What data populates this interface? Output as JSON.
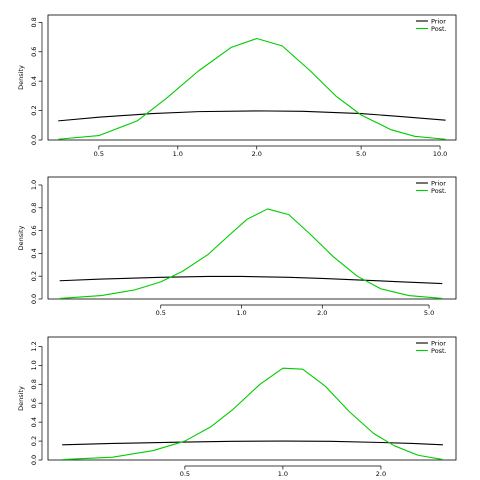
{
  "chart_data": [
    {
      "type": "line",
      "ylabel": "Density",
      "x_scale": "log",
      "xlim": [
        0.32,
        11.5
      ],
      "ylim": [
        0,
        0.85
      ],
      "xticks": [
        0.5,
        1.0,
        2.0,
        5.0,
        10.0
      ],
      "xtick_labels": [
        "0.5",
        "1.0",
        "2.0",
        "5.0",
        "10.0"
      ],
      "yticks": [
        0.0,
        0.2,
        0.4,
        0.6,
        0.8
      ],
      "ytick_labels": [
        "0.0",
        "0.2",
        "0.4",
        "0.6",
        "0.8"
      ],
      "legend": {
        "position": "top-right",
        "entries": [
          {
            "label": "Prior",
            "color": "#000000"
          },
          {
            "label": "Post.",
            "color": "#00cc00"
          }
        ]
      },
      "series": [
        {
          "name": "Prior",
          "color": "#000000",
          "x": [
            0.35,
            0.5,
            0.8,
            1.2,
            2.0,
            3.0,
            5.0,
            7.0,
            10.5
          ],
          "y": [
            0.13,
            0.155,
            0.18,
            0.193,
            0.198,
            0.195,
            0.18,
            0.16,
            0.135
          ]
        },
        {
          "name": "Post.",
          "color": "#00cc00",
          "x": [
            0.35,
            0.5,
            0.7,
            0.9,
            1.2,
            1.6,
            2.0,
            2.5,
            3.2,
            4.0,
            5.0,
            6.5,
            8.0,
            10.5
          ],
          "y": [
            0.005,
            0.03,
            0.13,
            0.28,
            0.47,
            0.63,
            0.69,
            0.64,
            0.47,
            0.3,
            0.17,
            0.07,
            0.025,
            0.005
          ]
        }
      ]
    },
    {
      "type": "line",
      "ylabel": "Density",
      "x_scale": "log",
      "xlim": [
        0.19,
        6.3
      ],
      "ylim": [
        0,
        1.07
      ],
      "xticks": [
        0.5,
        1.0,
        2.0,
        5.0
      ],
      "xtick_labels": [
        "0.5",
        "1.0",
        "2.0",
        "5.0"
      ],
      "yticks": [
        0.0,
        0.2,
        0.4,
        0.6,
        0.8,
        1.0
      ],
      "ytick_labels": [
        "0.0",
        "0.2",
        "0.4",
        "0.6",
        "0.8",
        "1.0"
      ],
      "legend": {
        "position": "top-right",
        "entries": [
          {
            "label": "Prior",
            "color": "#000000"
          },
          {
            "label": "Post.",
            "color": "#00cc00"
          }
        ]
      },
      "series": [
        {
          "name": "Prior",
          "color": "#000000",
          "x": [
            0.21,
            0.3,
            0.5,
            0.75,
            1.0,
            1.5,
            2.0,
            3.0,
            4.0,
            5.6
          ],
          "y": [
            0.16,
            0.175,
            0.19,
            0.198,
            0.198,
            0.19,
            0.18,
            0.163,
            0.15,
            0.135
          ]
        },
        {
          "name": "Post.",
          "color": "#00cc00",
          "x": [
            0.21,
            0.3,
            0.4,
            0.5,
            0.6,
            0.75,
            0.9,
            1.05,
            1.25,
            1.5,
            1.8,
            2.2,
            2.7,
            3.3,
            4.2,
            5.6
          ],
          "y": [
            0.005,
            0.03,
            0.08,
            0.15,
            0.24,
            0.39,
            0.56,
            0.7,
            0.79,
            0.74,
            0.57,
            0.37,
            0.2,
            0.09,
            0.03,
            0.005
          ]
        }
      ]
    },
    {
      "type": "line",
      "ylabel": "Density",
      "x_scale": "log",
      "xlim": [
        0.19,
        3.4
      ],
      "ylim": [
        0,
        1.3
      ],
      "xticks": [
        0.5,
        1.0,
        2.0
      ],
      "xtick_labels": [
        "0.5",
        "1.0",
        "2.0"
      ],
      "yticks": [
        0.0,
        0.2,
        0.4,
        0.6,
        0.8,
        1.0,
        1.2
      ],
      "ytick_labels": [
        "0.0",
        "0.2",
        "0.4",
        "0.6",
        "0.8",
        "1.0",
        "1.2"
      ],
      "legend": {
        "position": "top-right",
        "entries": [
          {
            "label": "Prior",
            "color": "#000000"
          },
          {
            "label": "Post.",
            "color": "#00cc00"
          }
        ]
      },
      "series": [
        {
          "name": "Prior",
          "color": "#000000",
          "x": [
            0.21,
            0.3,
            0.5,
            0.7,
            1.0,
            1.4,
            2.0,
            2.5,
            3.1
          ],
          "y": [
            0.16,
            0.175,
            0.19,
            0.198,
            0.2,
            0.197,
            0.185,
            0.175,
            0.16
          ]
        },
        {
          "name": "Post.",
          "color": "#00cc00",
          "x": [
            0.21,
            0.3,
            0.4,
            0.5,
            0.6,
            0.7,
            0.85,
            1.0,
            1.15,
            1.35,
            1.6,
            1.9,
            2.2,
            2.6,
            3.1
          ],
          "y": [
            0.005,
            0.03,
            0.1,
            0.2,
            0.35,
            0.53,
            0.8,
            0.97,
            0.96,
            0.78,
            0.51,
            0.28,
            0.15,
            0.05,
            0.005
          ]
        }
      ]
    }
  ]
}
